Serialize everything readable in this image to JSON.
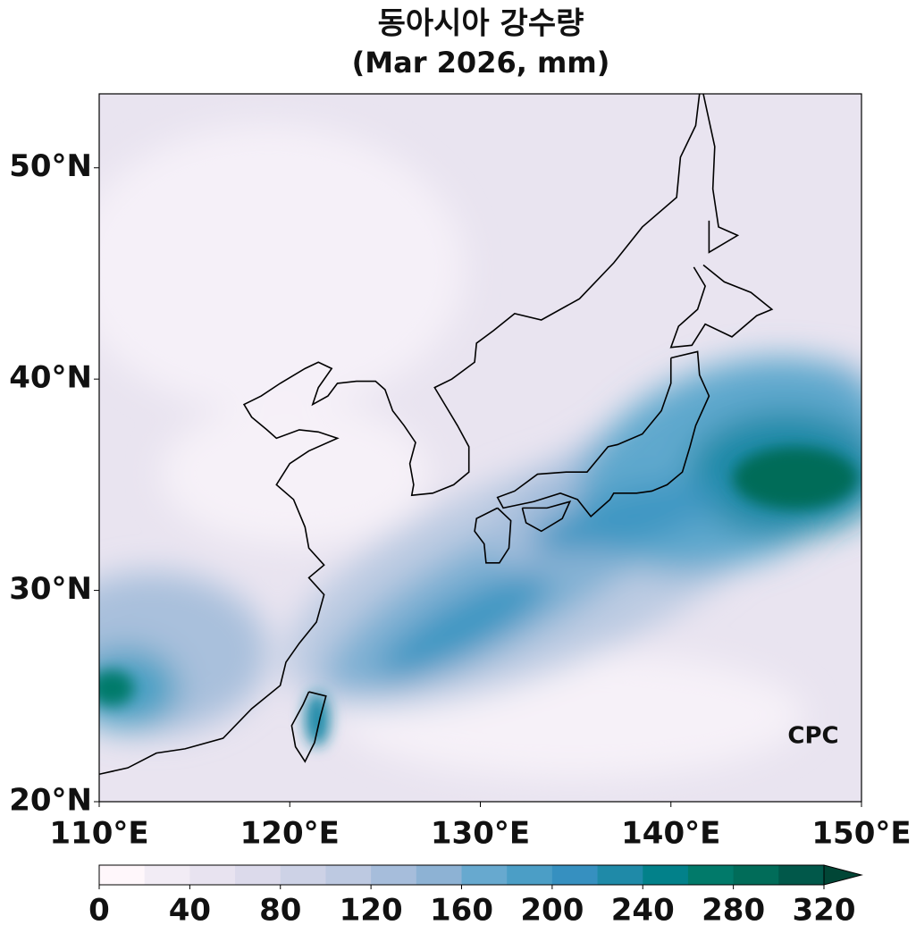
{
  "map": {
    "title": "동아시아 강수량",
    "subtitle": "(Mar 2026, mm)",
    "logo": "CPC",
    "xlim": [
      110,
      150
    ],
    "ylim": [
      20,
      53.5
    ],
    "xticks": [
      {
        "value": 110,
        "label": "110°E"
      },
      {
        "value": 120,
        "label": "120°E"
      },
      {
        "value": 130,
        "label": "130°E"
      },
      {
        "value": 140,
        "label": "140°E"
      },
      {
        "value": 150,
        "label": "150°E"
      }
    ],
    "yticks": [
      {
        "value": 20,
        "label": "20°N"
      },
      {
        "value": 30,
        "label": "30°N"
      },
      {
        "value": 40,
        "label": "40°N"
      },
      {
        "value": 50,
        "label": "50°N"
      }
    ],
    "colorbar": {
      "levels": [
        0,
        20,
        40,
        60,
        80,
        100,
        120,
        140,
        160,
        180,
        200,
        220,
        240,
        260,
        280,
        300,
        320
      ],
      "colors": [
        "#fff7fb",
        "#f2ecf5",
        "#e8e3f0",
        "#dcdaeb",
        "#cdd2e6",
        "#bdc9e1",
        "#a6bddb",
        "#8db2d4",
        "#67a9cf",
        "#4b9ec6",
        "#3690c0",
        "#1f8aa8",
        "#02818a",
        "#017a6a",
        "#016c59",
        "#01584a"
      ],
      "extend_color": "#014636",
      "ticks": [
        0,
        40,
        80,
        120,
        160,
        200,
        240,
        280,
        320
      ]
    }
  }
}
